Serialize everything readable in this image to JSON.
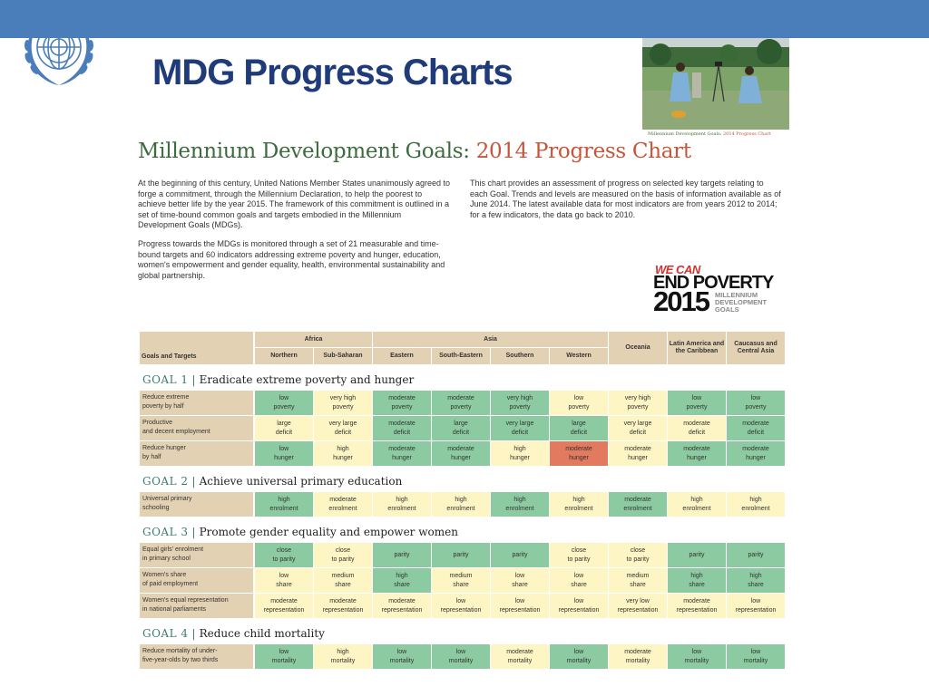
{
  "slide_title": "MDG Progress Charts",
  "photo_caption": {
    "part1": "Millennium Development Goals:",
    "part2": "2014 Progress Chart"
  },
  "doc_title": {
    "part1": "Millennium Development Goals:",
    "part2": "2014 Progress Chart"
  },
  "paragraphs": [
    "At the beginning of this century, United Nations Member States unanimously agreed to forge a commitment, through the Millennium Declaration, to help the poorest to achieve better life by the year 2015. The framework of this commitment is outlined in a set of time-bound common goals and targets embodied in the Millennium Development Goals (MDGs).",
    "Progress towards the MDGs is monitored through a set of 21 measurable and time-bound targets and 60 indicators addressing extreme poverty and hunger, education, women's empowerment and gender equality, health, environmental sustainability and global partnership.",
    "This chart provides an assessment of progress on selected key targets relating to each Goal. Trends and levels are measured on the basis of information available as of June 2014. The latest available data for most indicators are from years 2012 to 2014; for a few indicators, the data go back to 2010."
  ],
  "end_poverty": {
    "line1": "WE CAN",
    "line2": "END POVERTY",
    "year": "2015",
    "mdg": [
      "MILLENNIUM",
      "DEVELOPMENT",
      "GOALS"
    ]
  },
  "colors": {
    "top_bar": "#4a7ebb",
    "title": "#1f3b7a",
    "on_track": "#8ccba1",
    "moderate": "#fdf6c4",
    "off_track": "#e27a5f",
    "header_bg": "#e3d1b3"
  },
  "table": {
    "goals_col_header": "Goals and Targets",
    "group_headers": {
      "africa": "Africa",
      "asia": "Asia"
    },
    "regions": [
      "Northern",
      "Sub-Saharan",
      "Eastern",
      "South-Eastern",
      "Southern",
      "Western",
      "Oceania",
      "Latin America and the Caribbean",
      "Caucasus and Central Asia"
    ],
    "goals": [
      {
        "number": "GOAL 1",
        "title": "Eradicate extreme poverty and hunger",
        "rows": [
          {
            "target": "Reduce extreme\npoverty by half",
            "cells": [
              [
                "low\npoverty",
                "g"
              ],
              [
                "very high\npoverty",
                "y"
              ],
              [
                "moderate\npoverty",
                "g"
              ],
              [
                "moderate\npoverty",
                "g"
              ],
              [
                "very high\npoverty",
                "g"
              ],
              [
                "low\npoverty",
                "y"
              ],
              [
                "very high\npoverty",
                "y"
              ],
              [
                "low\npoverty",
                "g"
              ],
              [
                "low\npoverty",
                "g"
              ]
            ]
          },
          {
            "target": "Productive\nand decent employment",
            "cells": [
              [
                "large\ndeficit",
                "y"
              ],
              [
                "very large\ndeficit",
                "y"
              ],
              [
                "moderate\ndeficit",
                "g"
              ],
              [
                "large\ndeficit",
                "g"
              ],
              [
                "very large\ndeficit",
                "g"
              ],
              [
                "large\ndeficit",
                "g"
              ],
              [
                "very large\ndeficit",
                "y"
              ],
              [
                "moderate\ndeficit",
                "y"
              ],
              [
                "moderate\ndeficit",
                "g"
              ]
            ]
          },
          {
            "target": "Reduce hunger\nby half",
            "cells": [
              [
                "low\nhunger",
                "g"
              ],
              [
                "high\nhunger",
                "y"
              ],
              [
                "moderate\nhunger",
                "g"
              ],
              [
                "moderate\nhunger",
                "g"
              ],
              [
                "high\nhunger",
                "y"
              ],
              [
                "moderate\nhunger",
                "r"
              ],
              [
                "moderate\nhunger",
                "y"
              ],
              [
                "moderate\nhunger",
                "g"
              ],
              [
                "moderate\nhunger",
                "g"
              ]
            ]
          }
        ]
      },
      {
        "number": "GOAL 2",
        "title": "Achieve universal primary education",
        "rows": [
          {
            "target": "Universal primary\nschooling",
            "cells": [
              [
                "high\nenrolment",
                "g"
              ],
              [
                "moderate\nenrolment",
                "y"
              ],
              [
                "high\nenrolment",
                "y"
              ],
              [
                "high\nenrolment",
                "y"
              ],
              [
                "high\nenrolment",
                "g"
              ],
              [
                "high\nenrolment",
                "y"
              ],
              [
                "moderate\nenrolment",
                "g"
              ],
              [
                "high\nenrolment",
                "y"
              ],
              [
                "high\nenrolment",
                "y"
              ]
            ]
          }
        ]
      },
      {
        "number": "GOAL 3",
        "title": "Promote gender equality and empower women",
        "rows": [
          {
            "target": "Equal girls' enrolment\nin primary school",
            "cells": [
              [
                "close\nto parity",
                "g"
              ],
              [
                "close\nto parity",
                "y"
              ],
              [
                "parity",
                "g"
              ],
              [
                "parity",
                "g"
              ],
              [
                "parity",
                "g"
              ],
              [
                "close\nto parity",
                "y"
              ],
              [
                "close\nto parity",
                "y"
              ],
              [
                "parity",
                "g"
              ],
              [
                "parity",
                "g"
              ]
            ]
          },
          {
            "target": "Women's share\nof paid employment",
            "cells": [
              [
                "low\nshare",
                "y"
              ],
              [
                "medium\nshare",
                "y"
              ],
              [
                "high\nshare",
                "g"
              ],
              [
                "medium\nshare",
                "y"
              ],
              [
                "low\nshare",
                "y"
              ],
              [
                "low\nshare",
                "y"
              ],
              [
                "medium\nshare",
                "y"
              ],
              [
                "high\nshare",
                "g"
              ],
              [
                "high\nshare",
                "g"
              ]
            ]
          },
          {
            "target": "Women's equal representation\nin national parliaments",
            "cells": [
              [
                "moderate\nrepresentation",
                "y"
              ],
              [
                "moderate\nrepresentation",
                "y"
              ],
              [
                "moderate\nrepresentation",
                "y"
              ],
              [
                "low\nrepresentation",
                "y"
              ],
              [
                "low\nrepresentation",
                "y"
              ],
              [
                "low\nrepresentation",
                "y"
              ],
              [
                "very low\nrepresentation",
                "y"
              ],
              [
                "moderate\nrepresentation",
                "y"
              ],
              [
                "low\nrepresentation",
                "y"
              ]
            ]
          }
        ]
      },
      {
        "number": "GOAL 4",
        "title": "Reduce child mortality",
        "rows": [
          {
            "target": "Reduce mortality of under-\nfive-year-olds by two thirds",
            "cells": [
              [
                "low\nmortality",
                "g"
              ],
              [
                "high\nmortality",
                "y"
              ],
              [
                "low\nmortality",
                "g"
              ],
              [
                "low\nmortality",
                "g"
              ],
              [
                "moderate\nmortality",
                "y"
              ],
              [
                "low\nmortality",
                "g"
              ],
              [
                "moderate\nmortality",
                "y"
              ],
              [
                "low\nmortality",
                "g"
              ],
              [
                "low\nmortality",
                "g"
              ]
            ]
          }
        ]
      }
    ]
  }
}
